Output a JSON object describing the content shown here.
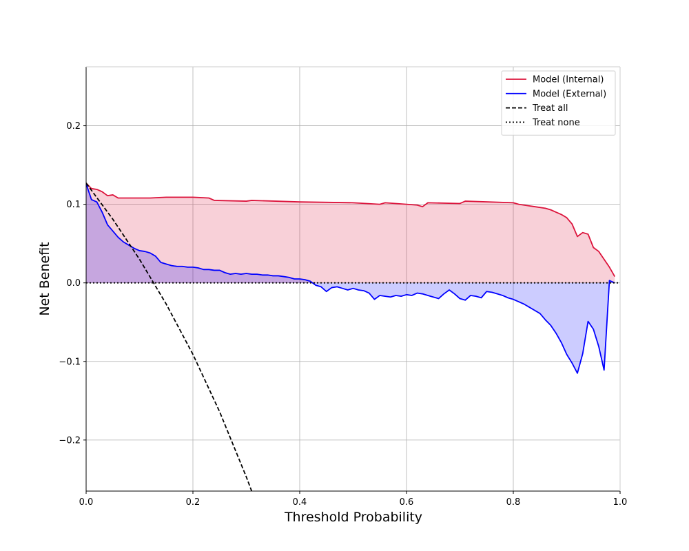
{
  "chart_data": {
    "type": "line",
    "title": "",
    "xlabel": "Threshold Probability",
    "ylabel": "Net Benefit",
    "xlim": [
      0.0,
      1.0
    ],
    "ylim": [
      -0.265,
      0.275
    ],
    "x_ticks": [
      0.0,
      0.2,
      0.4,
      0.6,
      0.8,
      1.0
    ],
    "x_tick_labels": [
      "0.0",
      "0.2",
      "0.4",
      "0.6",
      "0.8",
      "1.0"
    ],
    "y_ticks": [
      -0.2,
      -0.1,
      0.0,
      0.1,
      0.2
    ],
    "y_tick_labels": [
      "−0.2",
      "−0.1",
      "0.0",
      "0.1",
      "0.2"
    ],
    "grid": true,
    "legend_position": "top-right",
    "series": [
      {
        "name": "Model (Internal)",
        "color": "#dc143c",
        "style": "solid",
        "fill_to_zero": true,
        "fill_color": "#dc143c",
        "x": [
          0.0,
          0.01,
          0.02,
          0.03,
          0.04,
          0.05,
          0.06,
          0.08,
          0.1,
          0.12,
          0.15,
          0.2,
          0.23,
          0.24,
          0.3,
          0.31,
          0.4,
          0.5,
          0.55,
          0.56,
          0.6,
          0.62,
          0.63,
          0.64,
          0.7,
          0.71,
          0.8,
          0.81,
          0.82,
          0.84,
          0.86,
          0.87,
          0.88,
          0.89,
          0.9,
          0.91,
          0.92,
          0.93,
          0.94,
          0.95,
          0.96,
          0.97,
          0.98,
          0.99
        ],
        "y": [
          0.127,
          0.12,
          0.119,
          0.116,
          0.111,
          0.112,
          0.108,
          0.108,
          0.108,
          0.108,
          0.109,
          0.109,
          0.108,
          0.105,
          0.104,
          0.105,
          0.103,
          0.102,
          0.1,
          0.102,
          0.1,
          0.099,
          0.097,
          0.102,
          0.101,
          0.104,
          0.102,
          0.1,
          0.099,
          0.097,
          0.095,
          0.093,
          0.09,
          0.087,
          0.083,
          0.075,
          0.059,
          0.064,
          0.062,
          0.045,
          0.04,
          0.03,
          0.02,
          0.008
        ]
      },
      {
        "name": "Model (External)",
        "color": "#0000ff",
        "style": "solid",
        "fill_to_zero": true,
        "fill_color": "#0000ff",
        "x": [
          0.0,
          0.01,
          0.02,
          0.03,
          0.04,
          0.05,
          0.06,
          0.07,
          0.08,
          0.09,
          0.1,
          0.11,
          0.12,
          0.13,
          0.14,
          0.15,
          0.16,
          0.17,
          0.18,
          0.19,
          0.2,
          0.21,
          0.22,
          0.23,
          0.24,
          0.25,
          0.26,
          0.27,
          0.28,
          0.29,
          0.3,
          0.31,
          0.32,
          0.33,
          0.34,
          0.35,
          0.36,
          0.37,
          0.38,
          0.39,
          0.4,
          0.41,
          0.42,
          0.43,
          0.44,
          0.45,
          0.46,
          0.47,
          0.48,
          0.49,
          0.5,
          0.51,
          0.52,
          0.53,
          0.54,
          0.55,
          0.56,
          0.57,
          0.58,
          0.59,
          0.6,
          0.61,
          0.62,
          0.63,
          0.64,
          0.65,
          0.66,
          0.67,
          0.68,
          0.69,
          0.7,
          0.71,
          0.72,
          0.73,
          0.74,
          0.75,
          0.76,
          0.77,
          0.78,
          0.79,
          0.8,
          0.81,
          0.82,
          0.83,
          0.84,
          0.85,
          0.86,
          0.87,
          0.88,
          0.89,
          0.9,
          0.91,
          0.92,
          0.93,
          0.94,
          0.95,
          0.96,
          0.97,
          0.98,
          0.99
        ],
        "y": [
          0.126,
          0.106,
          0.103,
          0.09,
          0.074,
          0.066,
          0.058,
          0.052,
          0.048,
          0.044,
          0.041,
          0.04,
          0.038,
          0.034,
          0.026,
          0.024,
          0.022,
          0.021,
          0.021,
          0.02,
          0.02,
          0.019,
          0.017,
          0.017,
          0.016,
          0.016,
          0.013,
          0.011,
          0.012,
          0.011,
          0.012,
          0.011,
          0.011,
          0.01,
          0.01,
          0.009,
          0.009,
          0.008,
          0.007,
          0.005,
          0.005,
          0.004,
          0.002,
          -0.003,
          -0.005,
          -0.011,
          -0.006,
          -0.005,
          -0.007,
          -0.009,
          -0.007,
          -0.009,
          -0.01,
          -0.013,
          -0.021,
          -0.016,
          -0.017,
          -0.018,
          -0.016,
          -0.017,
          -0.015,
          -0.016,
          -0.013,
          -0.014,
          -0.016,
          -0.018,
          -0.02,
          -0.014,
          -0.009,
          -0.014,
          -0.02,
          -0.022,
          -0.016,
          -0.017,
          -0.019,
          -0.011,
          -0.012,
          -0.014,
          -0.016,
          -0.019,
          -0.021,
          -0.024,
          -0.027,
          -0.031,
          -0.035,
          -0.039,
          -0.047,
          -0.054,
          -0.064,
          -0.076,
          -0.091,
          -0.102,
          -0.115,
          -0.09,
          -0.049,
          -0.059,
          -0.081,
          -0.111,
          0.003,
          0.0
        ]
      },
      {
        "name": "Treat all",
        "color": "#000000",
        "style": "dashed",
        "x": [
          0.0,
          0.05,
          0.1,
          0.15,
          0.2,
          0.25,
          0.3,
          0.31
        ],
        "y": [
          0.127,
          0.081,
          0.03,
          -0.027,
          -0.091,
          -0.164,
          -0.247,
          -0.265
        ]
      },
      {
        "name": "Treat none",
        "color": "#000000",
        "style": "dotted",
        "x": [
          0.0,
          1.0
        ],
        "y": [
          0.0,
          0.0
        ]
      }
    ]
  }
}
